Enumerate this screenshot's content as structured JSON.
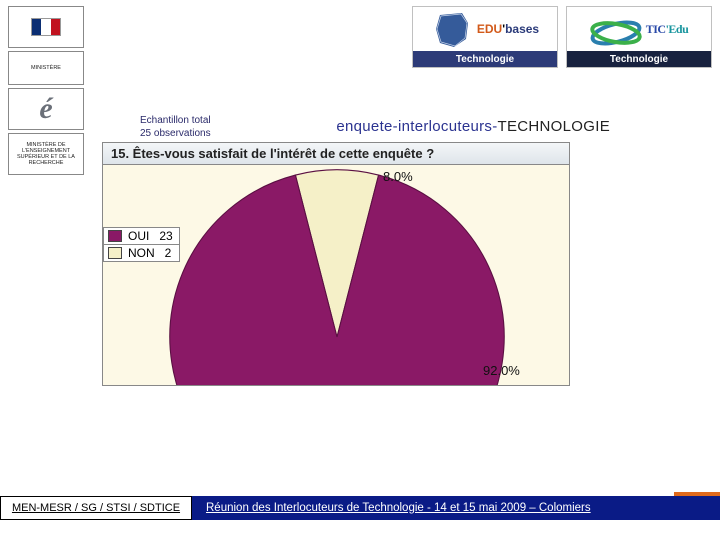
{
  "sidebar_logos": {
    "gov": {
      "colors": [
        "#0b2e73",
        "#ffffff",
        "#c1121f"
      ]
    },
    "min1": "MINISTÈRE",
    "academie_letter": "é",
    "min2": "MINISTÈRE DE L'ENSEIGNEMENT SUPÉRIEUR ET DE LA RECHERCHE"
  },
  "banners": {
    "edu": {
      "title_prefix": "EDU",
      "title_apos": "'",
      "title_suffix": "bases",
      "bar_label": "Technologie"
    },
    "tic": {
      "title": "TIC'Edu",
      "bar_label": "Technologie"
    }
  },
  "meta": {
    "line1": "Echantillon total",
    "line2": "25 observations"
  },
  "survey_title": {
    "part1": "enquete-interlocuteurs-",
    "part2": "TECHNOLOGIE"
  },
  "chart": {
    "type": "pie",
    "question": "15. Êtes-vous satisfait de l'intérêt de cette enquête ?",
    "background_color": "#fdf9e6",
    "slices": [
      {
        "label": "OUI",
        "value": 23,
        "pct": 92.0,
        "pct_label": "92.0%",
        "color": "#8a1966"
      },
      {
        "label": "NON",
        "value": 2,
        "pct": 8.0,
        "pct_label": "8.0%",
        "color": "#f5f0c8"
      }
    ],
    "pie_border_color": "#5a0f42",
    "label_fontsize": 13,
    "legend_fontsize": 12
  },
  "footer": {
    "left": "MEN-MESR / SG / STSI / SDTICE",
    "right": "Réunion des Interlocuteurs de Technologie - 14 et 15 mai 2009 –  Colomiers",
    "right_bg": "#0a1b86",
    "accent": "#e06a1a"
  }
}
